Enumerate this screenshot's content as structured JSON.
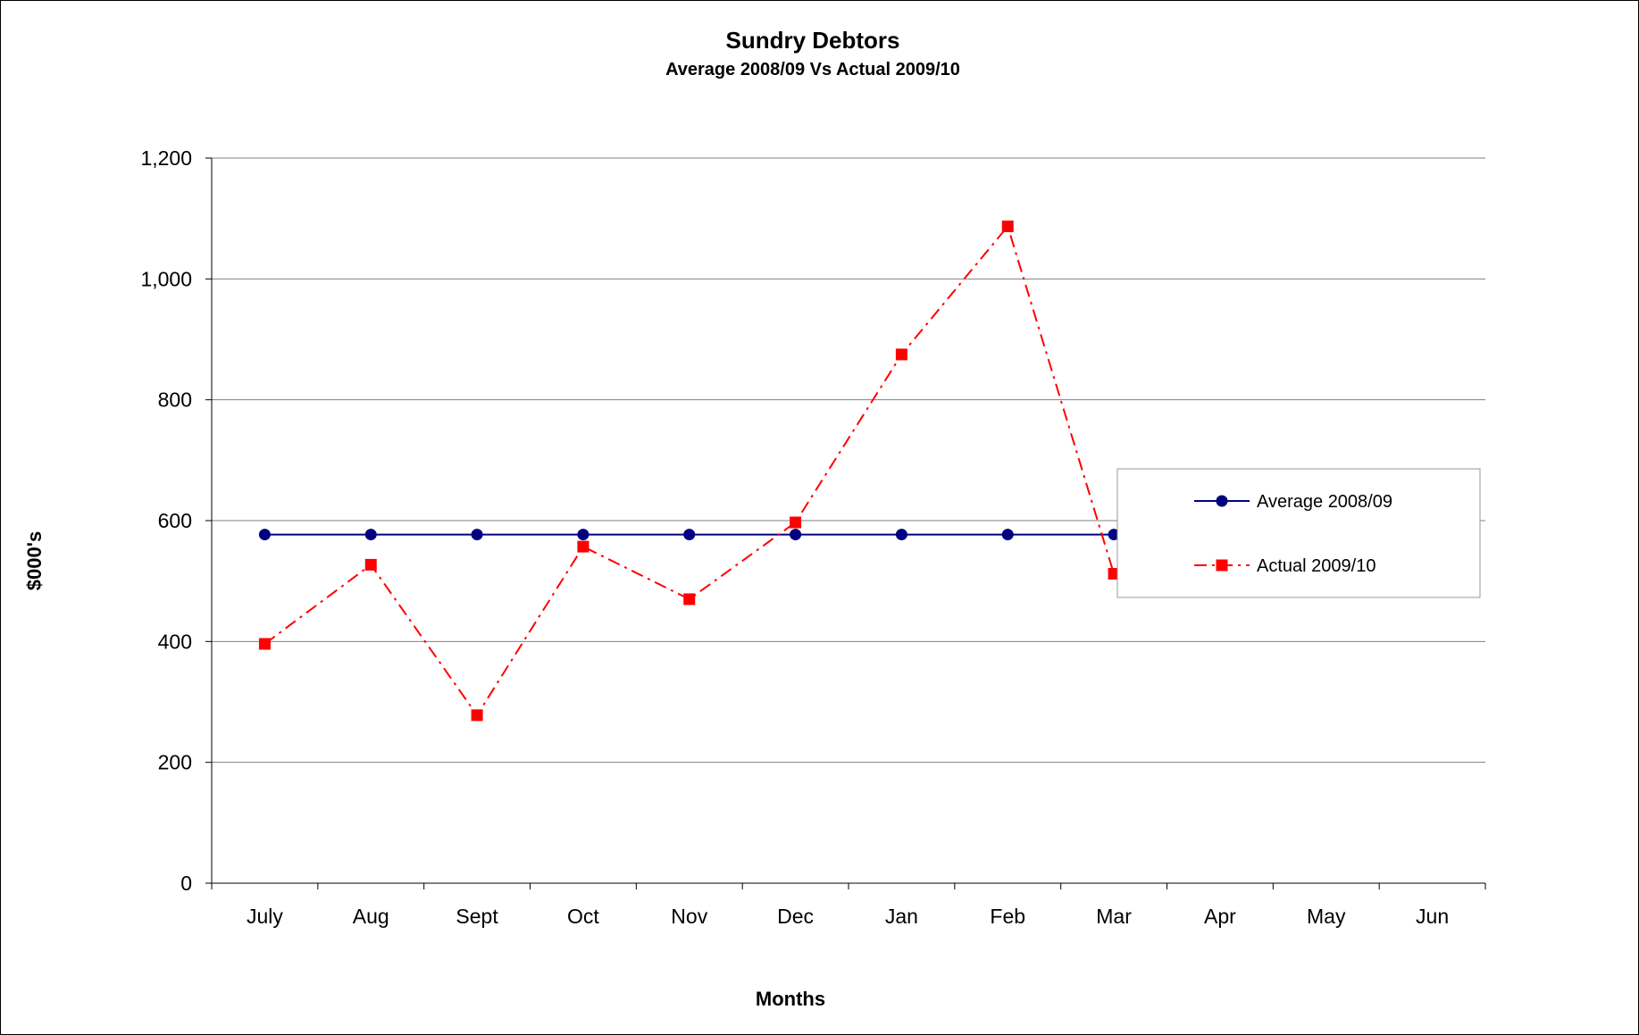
{
  "chart_data": {
    "type": "line",
    "title": "Sundry Debtors",
    "subtitle": "Average 2008/09 Vs Actual 2009/10",
    "xlabel": "Months",
    "ylabel": "$000's",
    "categories": [
      "July",
      "Aug",
      "Sept",
      "Oct",
      "Nov",
      "Dec",
      "Jan",
      "Feb",
      "Mar",
      "Apr",
      "May",
      "Jun"
    ],
    "ylim": [
      0,
      1200
    ],
    "yticks": [
      "0",
      "200",
      "400",
      "600",
      "800",
      "1,000",
      "1,200"
    ],
    "ytick_values": [
      0,
      200,
      400,
      600,
      800,
      1000,
      1200
    ],
    "grid": "horizontal",
    "legend_position": "right",
    "series": [
      {
        "name": "Average 2008/09",
        "values": [
          577,
          577,
          577,
          577,
          577,
          577,
          577,
          577,
          577,
          null,
          null,
          null
        ],
        "color": "#000080",
        "marker": "circle",
        "line_style": "solid"
      },
      {
        "name": "Actual 2009/10",
        "values": [
          396,
          527,
          278,
          557,
          470,
          597,
          875,
          1087,
          512,
          null,
          null,
          null
        ],
        "color": "#ff0000",
        "marker": "square",
        "line_style": "dash-dot"
      }
    ]
  }
}
